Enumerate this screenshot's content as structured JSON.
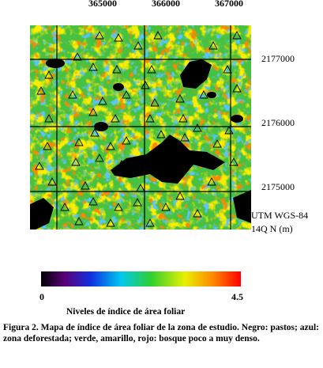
{
  "map": {
    "x_labels": [
      365000,
      366000,
      367000
    ],
    "y_labels": [
      2177000,
      2176000,
      2175000
    ],
    "projection": [
      "UTM WGS-84",
      "14Q N (m)"
    ]
  },
  "colorbar": {
    "min": 0,
    "max": 4.5,
    "title": "Niveles de índice de área foliar"
  },
  "caption": "Figura 2. Mapa de índice de área foliar de la zona de estudio. Negro: pastos; azul: zona deforestada; verde, amarillo, rojo: bosque poco a muy denso."
}
